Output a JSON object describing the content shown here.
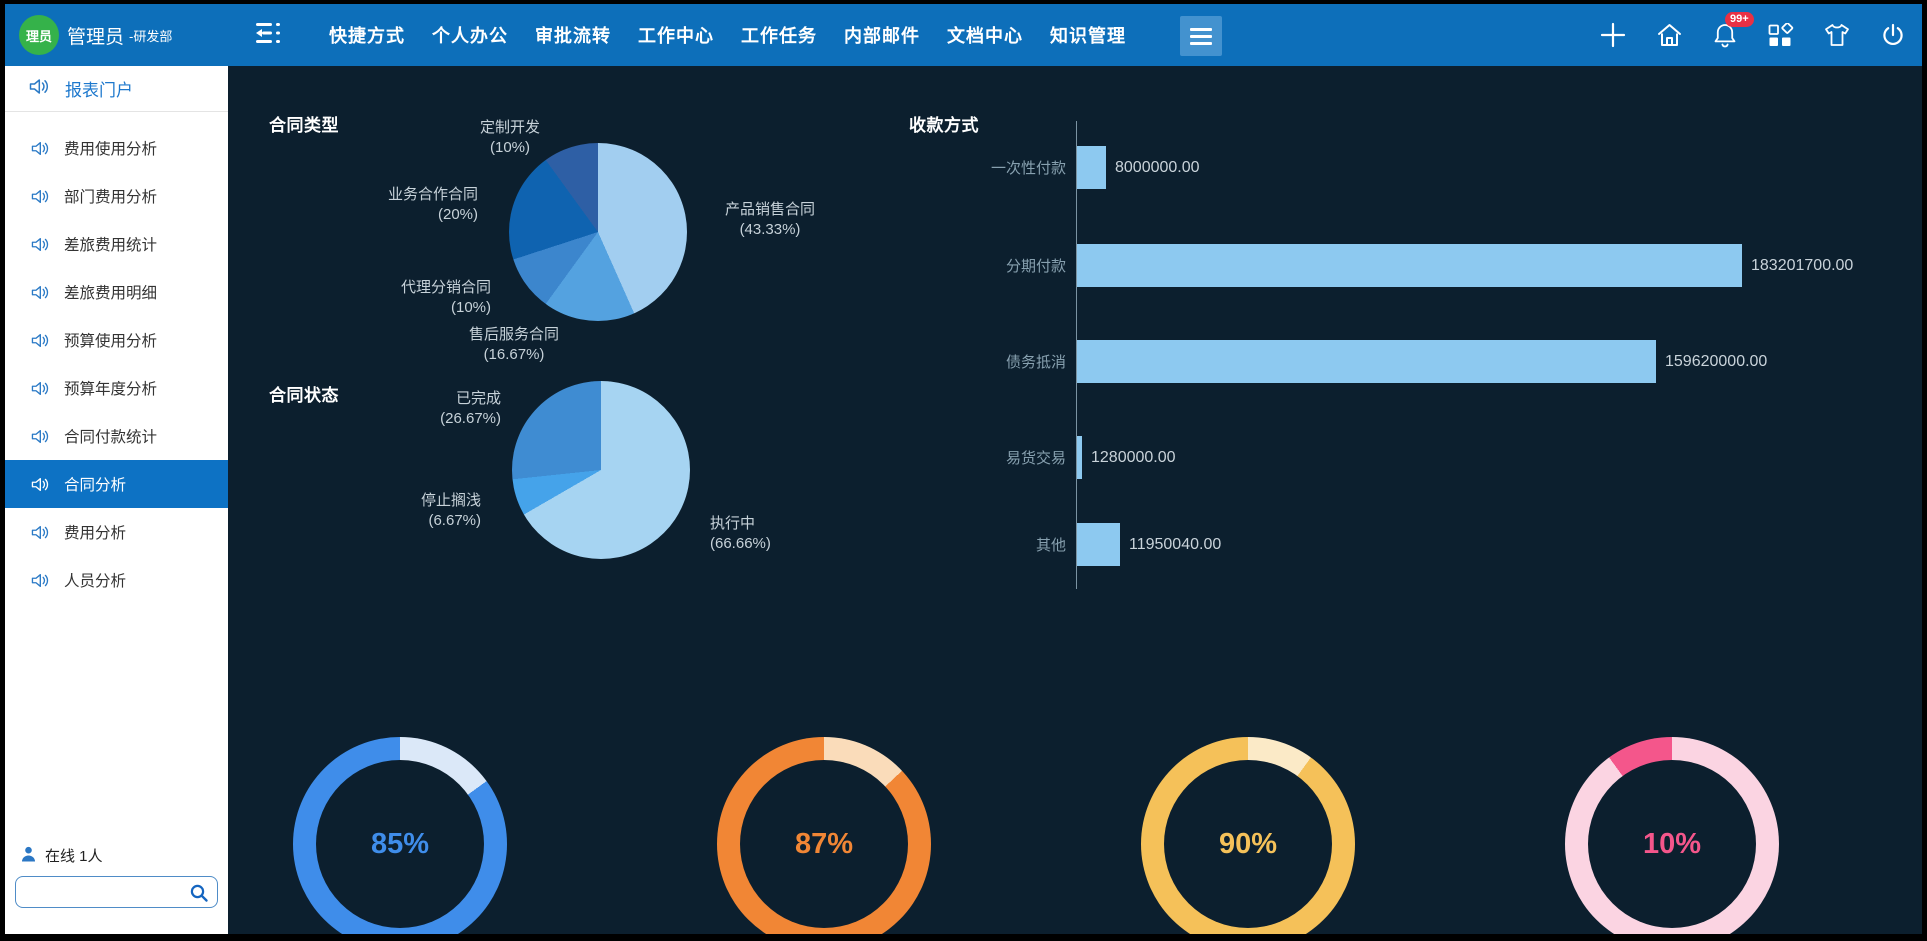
{
  "topbar": {
    "avatar_text": "理员",
    "username": "管理员",
    "department": "-研发部",
    "nav_items": [
      "快捷方式",
      "个人办公",
      "审批流转",
      "工作中心",
      "工作任务",
      "内部邮件",
      "文档中心",
      "知识管理"
    ],
    "notification_badge": "99+"
  },
  "sidebar": {
    "portal_label": "报表门户",
    "items": [
      "费用使用分析",
      "部门费用分析",
      "差旅费用统计",
      "差旅费用明细",
      "预算使用分析",
      "预算年度分析",
      "合同付款统计",
      "合同分析",
      "费用分析",
      "人员分析"
    ],
    "selected_item": "合同分析",
    "online_label": "在线 1人",
    "search_value": ""
  },
  "colors": {
    "topbar_blue": "#0d6fba",
    "main_background": "#0c1f2e",
    "selected_menu_blue": "#0d72c4",
    "badge_red": "#e93044",
    "avatar_green": "#35b24a"
  },
  "chart_data": [
    {
      "type": "pie",
      "title": "合同类型",
      "slices": [
        {
          "label": "产品销售合同",
          "pct": "(43.33%)",
          "value": 43.33,
          "color": "#a2cef0"
        },
        {
          "label": "售后服务合同",
          "pct": "(16.67%)",
          "value": 16.67,
          "color": "#54a2e0"
        },
        {
          "label": "代理分销合同",
          "pct": "(10%)",
          "value": 10,
          "color": "#3c86cd"
        },
        {
          "label": "业务合作合同",
          "pct": "(20%)",
          "value": 20,
          "color": "#0f63b0"
        },
        {
          "label": "定制开发",
          "pct": "(10%)",
          "value": 10,
          "color": "#2e5fa5"
        }
      ]
    },
    {
      "type": "pie",
      "title": "合同状态",
      "slices": [
        {
          "label": "执行中",
          "pct": "(66.66%)",
          "value": 66.66,
          "color": "#a6d4f2"
        },
        {
          "label": "停止搁浅",
          "pct": "(6.67%)",
          "value": 6.67,
          "color": "#45a3ea"
        },
        {
          "label": "已完成",
          "pct": "(26.67%)",
          "value": 26.67,
          "color": "#3f8cd2"
        }
      ]
    },
    {
      "type": "bar",
      "title": "收款方式",
      "orientation": "horizontal",
      "bar_color": "#8dc9f0",
      "xmax": 183201700,
      "categories": [
        "一次性付款",
        "分期付款",
        "债务抵消",
        "易货交易",
        "其他"
      ],
      "values": [
        8000000,
        183201700,
        159620000,
        1280000,
        11950040
      ],
      "value_labels": [
        "8000000.00",
        "183201700.00",
        "159620000.00",
        "1280000.00",
        "11950040.00"
      ]
    },
    {
      "type": "donut-gauge",
      "items": [
        {
          "label": "85%",
          "value": 85,
          "color": "#3f8dea",
          "track": "#dbe8f8"
        },
        {
          "label": "87%",
          "value": 87,
          "color": "#f18635",
          "track": "#fadcba"
        },
        {
          "label": "90%",
          "value": 90,
          "color": "#f5c159",
          "track": "#fbeac7"
        },
        {
          "label": "10%",
          "value": 10,
          "color": "#f4568b",
          "track": "#fbd4e2"
        }
      ]
    }
  ]
}
